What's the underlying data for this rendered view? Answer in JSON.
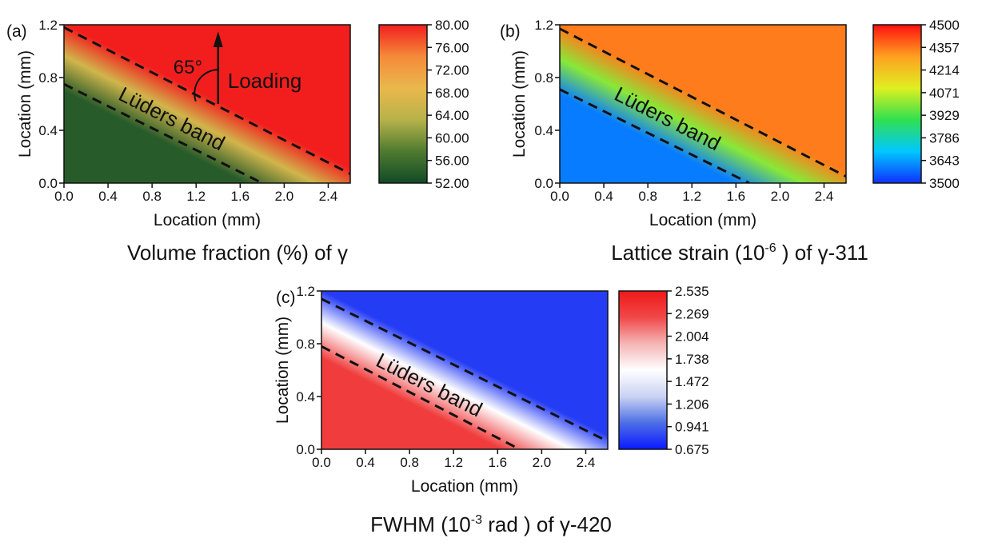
{
  "chart_data": [
    {
      "type": "heatmap",
      "panel_label": "(a)",
      "caption": "Volume fraction (%) of γ",
      "xlabel": "Location (mm)",
      "ylabel": "Location (mm)",
      "xlim": [
        0,
        2.6
      ],
      "ylim": [
        0,
        1.2
      ],
      "x_ticks": [
        "0.0",
        "0.4",
        "0.8",
        "1.2",
        "1.6",
        "2.0",
        "2.4"
      ],
      "y_ticks": [
        "0.0",
        "0.4",
        "0.8",
        "1.2"
      ],
      "colorbar_ticks": [
        "80.00",
        "76.00",
        "72.00",
        "68.00",
        "64.00",
        "60.00",
        "56.00",
        "52.00"
      ],
      "colorbar_range": [
        52,
        80
      ],
      "colormap": [
        "#124a26",
        "#4f7a30",
        "#b7b24a",
        "#eab84d",
        "#f58a3a",
        "#f21e1e"
      ],
      "band_label": "Lüders band",
      "band_lines": [
        {
          "x0": 0.0,
          "y0": 1.18,
          "x1": 2.6,
          "y1": 0.07
        },
        {
          "x0": 0.0,
          "y0": 0.75,
          "x1": 1.8,
          "y1": 0.0
        }
      ],
      "annotations": {
        "angle": "65°",
        "loading": "Loading"
      },
      "regions": {
        "left_low": 54,
        "band_center": 66,
        "right_high": 80
      }
    },
    {
      "type": "heatmap",
      "panel_label": "(b)",
      "caption_main": "Lattice strain (10",
      "caption_exp": "-6",
      "caption_tail": " ) of γ-311",
      "xlabel": "Location (mm)",
      "ylabel": "Location (mm)",
      "xlim": [
        0,
        2.6
      ],
      "ylim": [
        0,
        1.2
      ],
      "x_ticks": [
        "0.0",
        "0.4",
        "0.8",
        "1.2",
        "1.6",
        "2.0",
        "2.4"
      ],
      "y_ticks": [
        "0.0",
        "0.4",
        "0.8",
        "1.2"
      ],
      "colorbar_ticks": [
        "4500",
        "4357",
        "4214",
        "4071",
        "3929",
        "3786",
        "3643",
        "3500"
      ],
      "colorbar_range": [
        3500,
        4500
      ],
      "colormap": [
        "#1030ff",
        "#00c8ff",
        "#30e050",
        "#e0f020",
        "#ffa020",
        "#ff1010"
      ],
      "band_label": "Lüders band",
      "band_lines": [
        {
          "x0": 0.0,
          "y0": 1.17,
          "x1": 2.6,
          "y1": 0.05
        },
        {
          "x0": 0.0,
          "y0": 0.71,
          "x1": 1.72,
          "y1": 0.0
        }
      ],
      "regions": {
        "left_low": 3600,
        "band_center": 4000,
        "right_high": 4350
      }
    },
    {
      "type": "heatmap",
      "panel_label": "(c)",
      "caption_main": "FWHM (10",
      "caption_exp": "-3",
      "caption_tail": " rad ) of γ-420",
      "xlabel": "Location (mm)",
      "ylabel": "Location (mm)",
      "xlim": [
        0,
        2.6
      ],
      "ylim": [
        0,
        1.2
      ],
      "x_ticks": [
        "0.0",
        "0.4",
        "0.8",
        "1.2",
        "1.6",
        "2.0",
        "2.4"
      ],
      "y_ticks": [
        "0.0",
        "0.4",
        "0.8",
        "1.2"
      ],
      "colorbar_ticks": [
        "2.535",
        "2.269",
        "2.004",
        "1.738",
        "1.472",
        "1.206",
        "0.941",
        "0.675"
      ],
      "colorbar_range": [
        0.675,
        2.535
      ],
      "colormap": [
        "#0a1aff",
        "#4d6ee6",
        "#c9d2f2",
        "#ffffff",
        "#f5b5b5",
        "#f04848",
        "#f01818"
      ],
      "band_label": "Lüders band",
      "band_lines": [
        {
          "x0": 0.0,
          "y0": 1.14,
          "x1": 2.6,
          "y1": 0.06
        },
        {
          "x0": 0.0,
          "y0": 0.78,
          "x1": 1.8,
          "y1": 0.0
        }
      ],
      "regions": {
        "left_low": 2.3,
        "band_center": 1.6,
        "right_high": 0.8
      }
    }
  ]
}
